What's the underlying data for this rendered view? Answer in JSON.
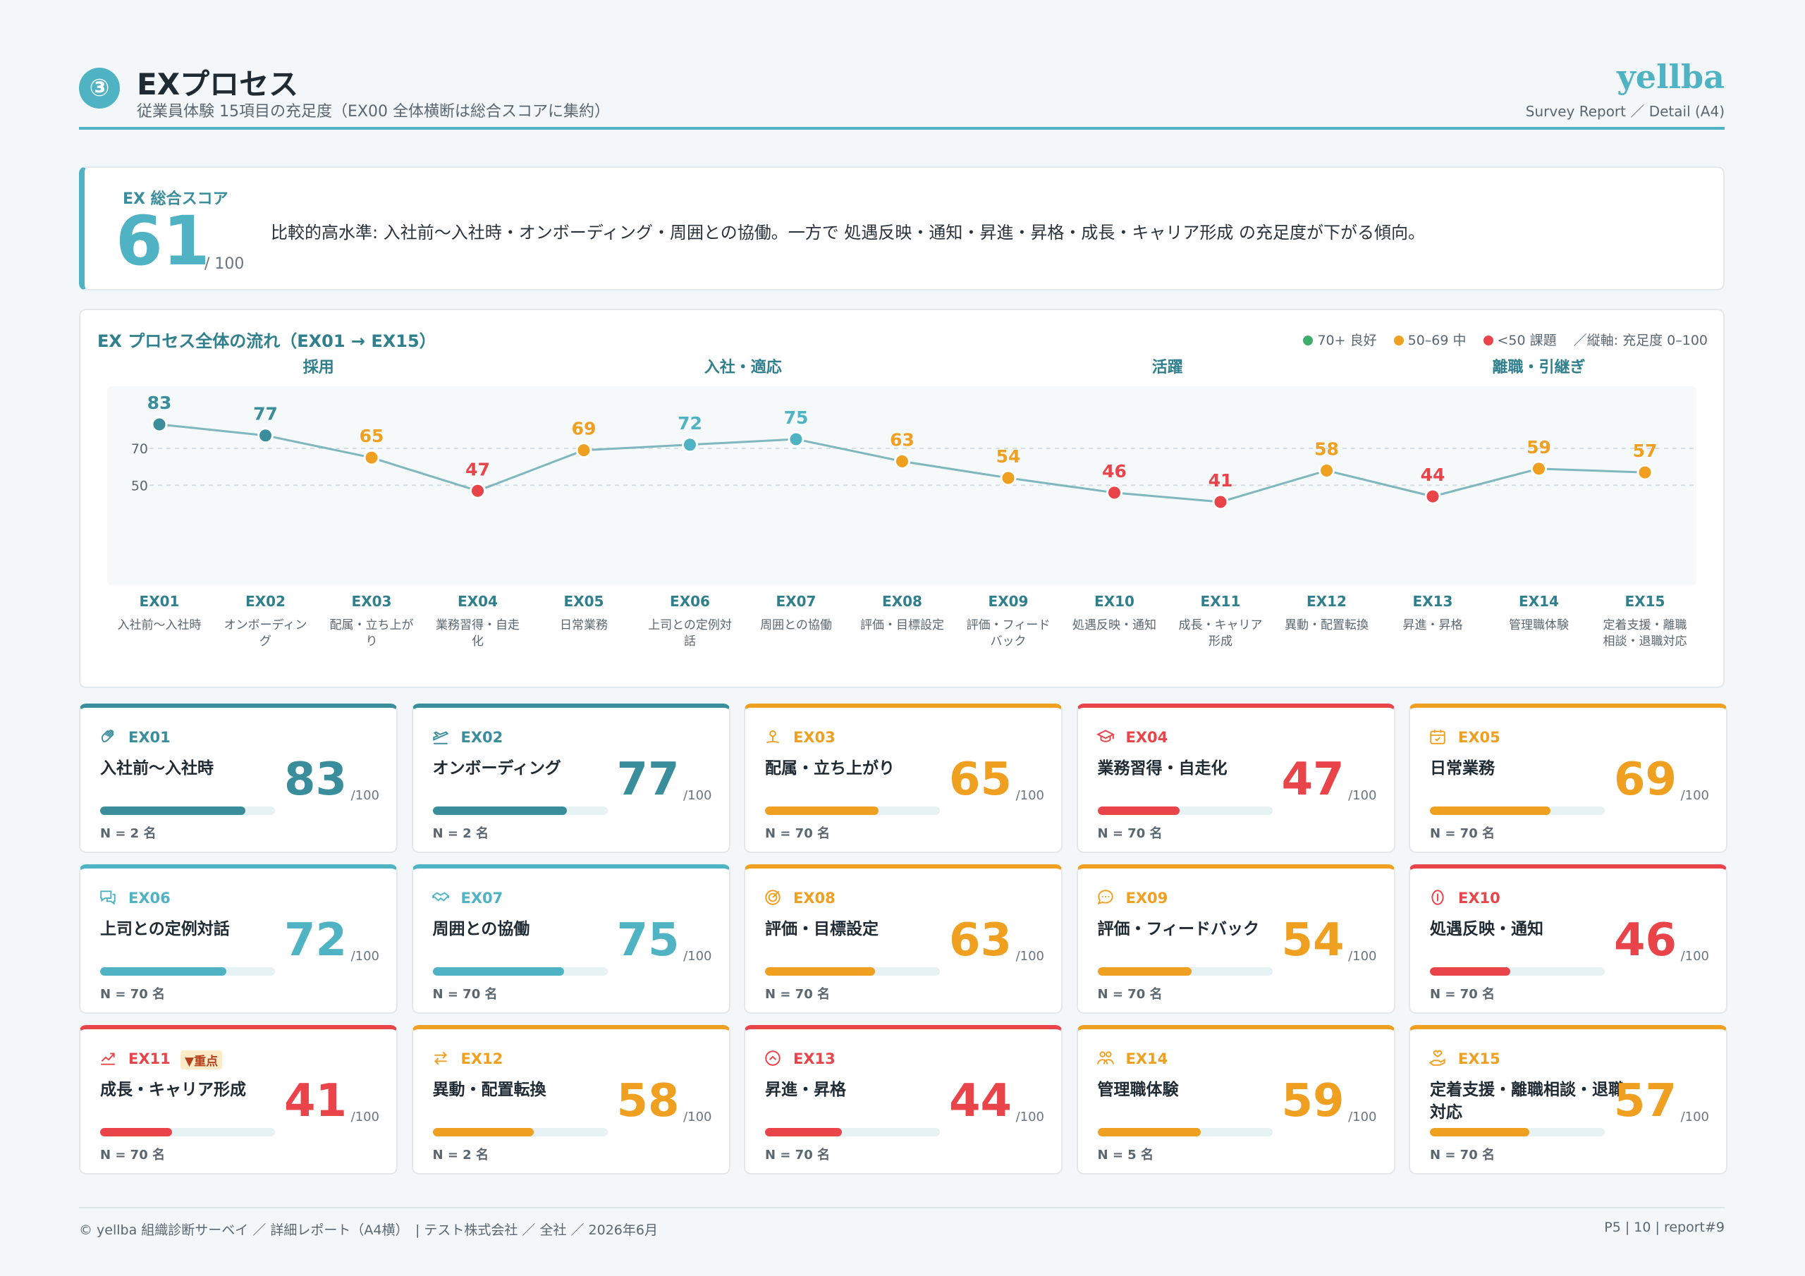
{
  "header": {
    "step": "③",
    "title": "EXプロセス",
    "subtitle": "従業員体験 15項目の充足度（EX00 全体横断は総合スコアに集約）",
    "brand": "yellba",
    "brand_sub": "Survey Report ／ Detail (A4)"
  },
  "summary": {
    "label": "EX 総合スコア",
    "score": "61",
    "max": "/ 100",
    "text": "比較的高水準: 入社前〜入社時・オンボーディング・周囲との協働。一方で 処遇反映・通知・昇進・昇格・成長・キャリア形成 の充足度が下がる傾向。"
  },
  "colors": {
    "good": "#3a8e9c",
    "good_light": "#4fb3c3",
    "mid": "#f0a020",
    "bad": "#e8444a",
    "legend_good": "#3fae6b",
    "legend_mid": "#f0a020",
    "legend_bad": "#e8444a"
  },
  "chart": {
    "title": "EX プロセス全体の流れ（EX01 → EX15）",
    "legend": [
      "70+ 良好",
      "50–69 中",
      "<50 課題",
      "／縦軸: 充足度 0–100"
    ],
    "phases": [
      {
        "label": "採用",
        "from": 0,
        "to": 3
      },
      {
        "label": "入社・適応",
        "from": 4,
        "to": 7
      },
      {
        "label": "活躍",
        "from": 8,
        "to": 11
      },
      {
        "label": "離職・引継ぎ",
        "from": 12,
        "to": 14
      }
    ]
  },
  "chart_data": {
    "type": "line",
    "y_ticks": [
      "70",
      "50"
    ],
    "y_tick_values": [
      70,
      50
    ],
    "categories": [
      "EX01",
      "EX02",
      "EX03",
      "EX04",
      "EX05",
      "EX06",
      "EX07",
      "EX08",
      "EX09",
      "EX10",
      "EX11",
      "EX12",
      "EX13",
      "EX14",
      "EX15"
    ],
    "category_names": [
      "入社前〜入社時",
      "オンボーディング",
      "配属・立ち上がり",
      "業務習得・自走化",
      "日常業務",
      "上司との定例対話",
      "周囲との協働",
      "評価・目標設定",
      "評価・フィードバック",
      "処遇反映・通知",
      "成長・キャリア形成",
      "異動・配置転換",
      "昇進・昇格",
      "管理職体験",
      "定着支援・離職相談・退職対応"
    ],
    "values": [
      83,
      77,
      65,
      47,
      69,
      72,
      75,
      63,
      54,
      46,
      41,
      58,
      44,
      59,
      57
    ],
    "ylim": [
      0,
      100
    ]
  },
  "cards": [
    {
      "code": "EX01",
      "name": "入社前〜入社時",
      "score": "83",
      "max": "/100",
      "n": "N = 2 名",
      "value": 83,
      "icon": "hand-wave-icon",
      "tag": ""
    },
    {
      "code": "EX02",
      "name": "オンボーディング",
      "score": "77",
      "max": "/100",
      "n": "N = 2 名",
      "value": 77,
      "icon": "plane-icon",
      "tag": ""
    },
    {
      "code": "EX03",
      "name": "配属・立ち上がり",
      "score": "65",
      "max": "/100",
      "n": "N = 70 名",
      "value": 65,
      "icon": "location-pin-icon",
      "tag": ""
    },
    {
      "code": "EX04",
      "name": "業務習得・自走化",
      "score": "47",
      "max": "/100",
      "n": "N = 70 名",
      "value": 47,
      "icon": "graduation-cap-icon",
      "tag": ""
    },
    {
      "code": "EX05",
      "name": "日常業務",
      "score": "69",
      "max": "/100",
      "n": "N = 70 名",
      "value": 69,
      "icon": "calendar-check-icon",
      "tag": ""
    },
    {
      "code": "EX06",
      "name": "上司との定例対話",
      "score": "72",
      "max": "/100",
      "n": "N = 70 名",
      "value": 72,
      "icon": "chat-bubbles-icon",
      "tag": ""
    },
    {
      "code": "EX07",
      "name": "周囲との協働",
      "score": "75",
      "max": "/100",
      "n": "N = 70 名",
      "value": 75,
      "icon": "handshake-icon",
      "tag": ""
    },
    {
      "code": "EX08",
      "name": "評価・目標設定",
      "score": "63",
      "max": "/100",
      "n": "N = 70 名",
      "value": 63,
      "icon": "target-icon",
      "tag": ""
    },
    {
      "code": "EX09",
      "name": "評価・フィードバック",
      "score": "54",
      "max": "/100",
      "n": "N = 70 名",
      "value": 54,
      "icon": "speech-bubble-icon",
      "tag": ""
    },
    {
      "code": "EX10",
      "name": "処遇反映・通知",
      "score": "46",
      "max": "/100",
      "n": "N = 70 名",
      "value": 46,
      "icon": "coin-icon",
      "tag": ""
    },
    {
      "code": "EX11",
      "name": "成長・キャリア形成",
      "score": "41",
      "max": "/100",
      "n": "N = 70 名",
      "value": 41,
      "icon": "trend-up-icon",
      "tag": "▼重点"
    },
    {
      "code": "EX12",
      "name": "異動・配置転換",
      "score": "58",
      "max": "/100",
      "n": "N = 2 名",
      "value": 58,
      "icon": "arrows-swap-icon",
      "tag": ""
    },
    {
      "code": "EX13",
      "name": "昇進・昇格",
      "score": "44",
      "max": "/100",
      "n": "N = 70 名",
      "value": 44,
      "icon": "chevron-up-circle-icon",
      "tag": ""
    },
    {
      "code": "EX14",
      "name": "管理職体験",
      "score": "59",
      "max": "/100",
      "n": "N = 5 名",
      "value": 59,
      "icon": "users-icon",
      "tag": ""
    },
    {
      "code": "EX15",
      "name": "定着支援・離職相談・退職対応",
      "score": "57",
      "max": "/100",
      "n": "N = 70 名",
      "value": 57,
      "icon": "hand-heart-icon",
      "tag": ""
    }
  ],
  "footer": {
    "left": "© yellba 組織診断サーベイ ／ 詳細レポート（A4横）　| テスト株式会社 ／ 全社 ／ 2026年6月",
    "right": "P5 | 10 | report#9"
  }
}
